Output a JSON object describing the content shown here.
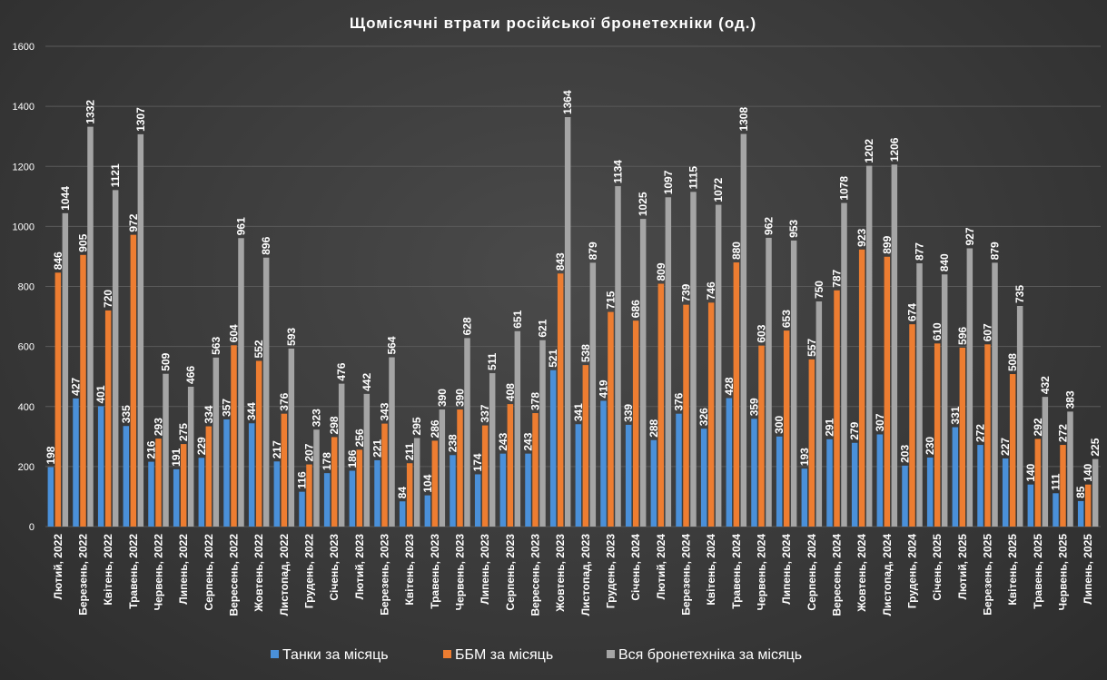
{
  "chart_data": {
    "type": "bar",
    "title": "Щомісячні втрати російської бронетехніки (од.)",
    "xlabel": "",
    "ylabel": "",
    "ylim": [
      0,
      1600
    ],
    "yticks": [
      0,
      200,
      400,
      600,
      800,
      1000,
      1200,
      1400,
      1600
    ],
    "grid": true,
    "legend_position": "bottom",
    "categories": [
      "Лютий, 2022",
      "Березень, 2022",
      "Квітень, 2022",
      "Травень, 2022",
      "Червень, 2022",
      "Липень, 2022",
      "Серпень, 2022",
      "Вересень, 2022",
      "Жовтень, 2022",
      "Листопад, 2022",
      "Грудень, 2022",
      "Січень, 2023",
      "Лютий, 2023",
      "Березень, 2023",
      "Квітень, 2023",
      "Травень, 2023",
      "Червень, 2023",
      "Липень, 2023",
      "Серпень, 2023",
      "Вересень, 2023",
      "Жовтень, 2023",
      "Листопад, 2023",
      "Грудень, 2023",
      "Січень, 2024",
      "Лютий, 2024",
      "Березень, 2024",
      "Квітень, 2024",
      "Травень, 2024",
      "Червень, 2024",
      "Липень, 2024",
      "Серпень, 2024",
      "Вересень, 2024",
      "Жовтень, 2024",
      "Листопад, 2024",
      "Грудень, 2024",
      "Січень, 2025",
      "Лютий, 2025",
      "Березень, 2025",
      "Квітень, 2025",
      "Травень, 2025",
      "Червень, 2025",
      "Липень, 2025"
    ],
    "series": [
      {
        "name": "Танки за місяць",
        "color": "#4a90d9",
        "values": [
          198,
          427,
          401,
          335,
          216,
          191,
          229,
          357,
          344,
          217,
          116,
          178,
          186,
          221,
          84,
          104,
          238,
          174,
          243,
          243,
          521,
          341,
          419,
          339,
          288,
          376,
          326,
          428,
          359,
          300,
          193,
          291,
          279,
          307,
          203,
          230,
          331,
          272,
          227,
          140,
          111,
          85
        ]
      },
      {
        "name": "ББМ за місяць",
        "color": "#ed7d31",
        "values": [
          846,
          905,
          720,
          972,
          293,
          275,
          334,
          604,
          552,
          376,
          207,
          298,
          256,
          343,
          211,
          286,
          390,
          337,
          408,
          378,
          843,
          538,
          715,
          686,
          809,
          739,
          746,
          880,
          603,
          653,
          557,
          787,
          923,
          899,
          674,
          610,
          596,
          607,
          508,
          292,
          272,
          140
        ]
      },
      {
        "name": "Вся бронетехніка за місяць",
        "color": "#a5a5a5",
        "values": [
          1044,
          1332,
          1121,
          1307,
          509,
          466,
          563,
          961,
          896,
          593,
          323,
          476,
          442,
          564,
          295,
          390,
          628,
          511,
          651,
          621,
          1364,
          879,
          1134,
          1025,
          1097,
          1115,
          1072,
          1308,
          962,
          953,
          750,
          1078,
          1202,
          1206,
          877,
          840,
          927,
          879,
          735,
          432,
          383,
          225
        ]
      }
    ]
  }
}
